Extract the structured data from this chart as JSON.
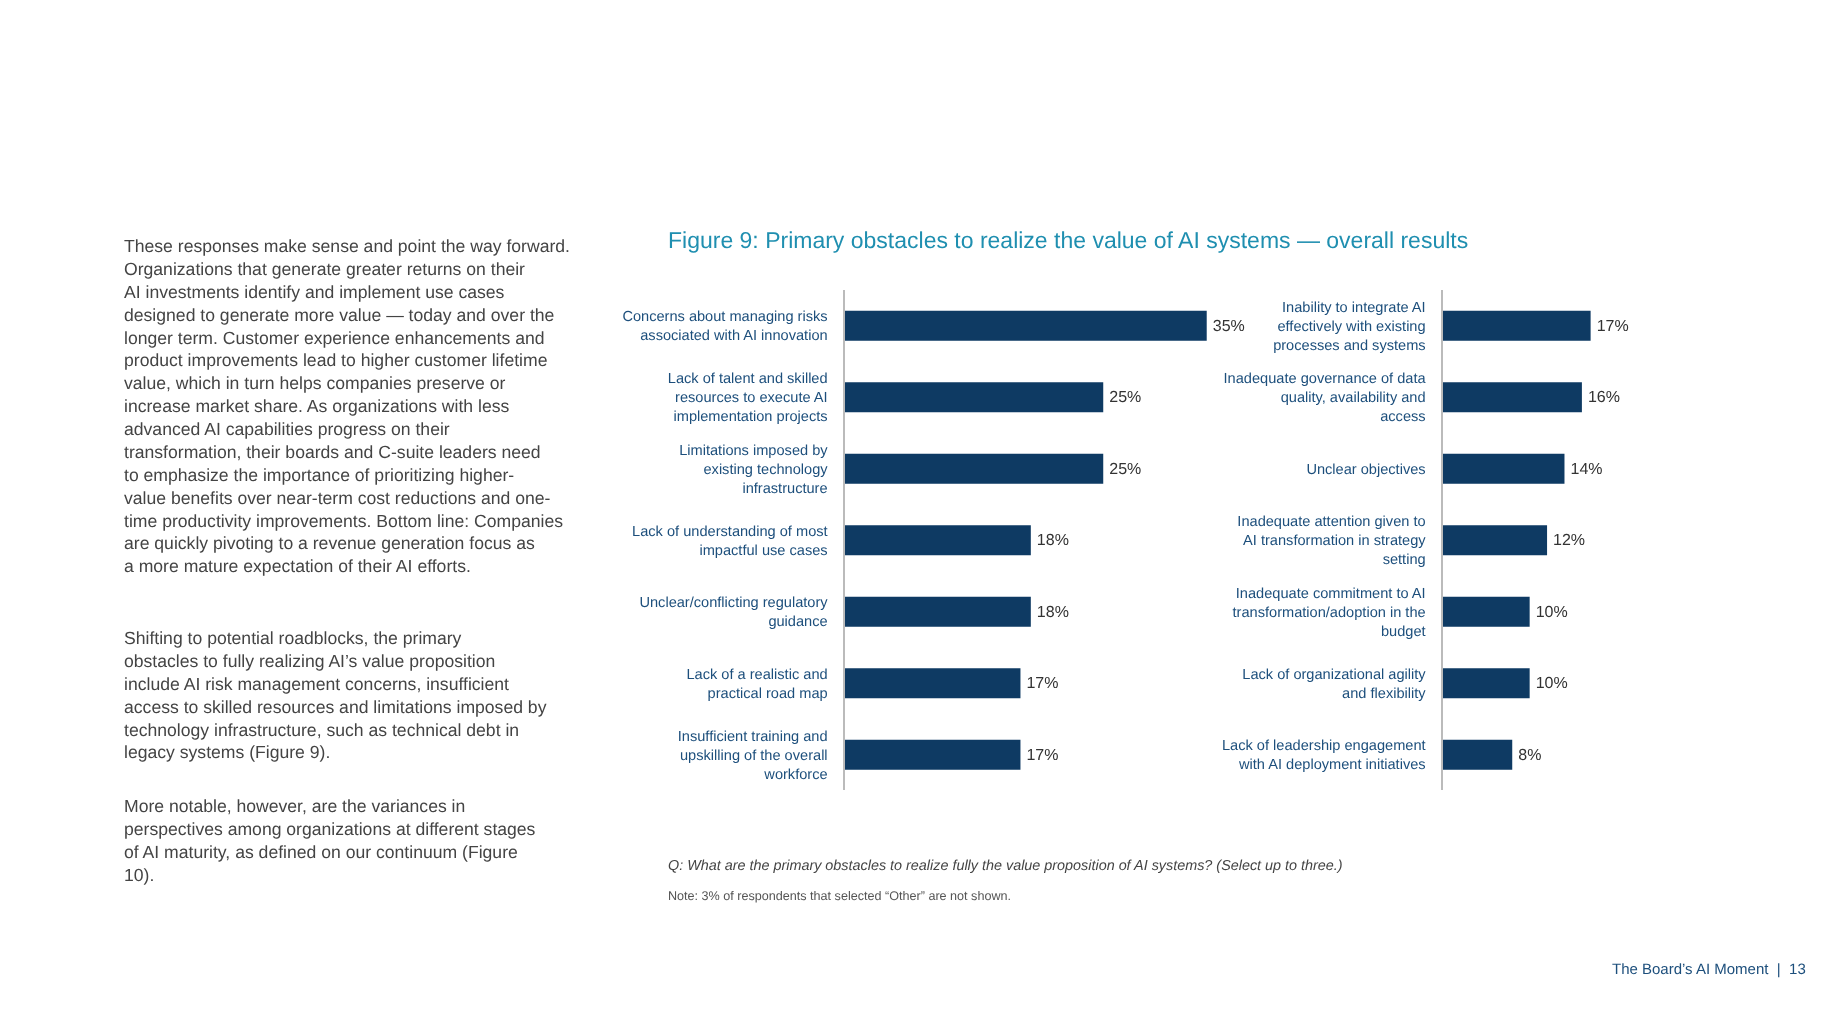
{
  "chart_data": [
    {
      "type": "bar",
      "orientation": "horizontal",
      "title": "Figure 9: Primary obstacles to realize the value of AI systems — overall results",
      "categories": [
        "Concerns about managing risks associated with AI innovation",
        "Lack of talent and skilled resources to execute AI implementation projects",
        "Limitations imposed by existing technology infrastructure",
        "Lack of understanding of most impactful use cases",
        "Unclear/conflicting regulatory guidance",
        "Lack of a realistic and practical road map",
        "Insufficient training and upskilling of the overall workforce"
      ],
      "series": [
        {
          "color": "#0e3a63",
          "values": [
            35,
            25,
            25,
            18,
            18,
            17,
            17
          ],
          "value_labels": [
            "35%",
            "25%",
            "25%",
            "18%",
            "18%",
            "17%",
            "17%"
          ]
        }
      ],
      "tick_labels": "y",
      "annotations": [
        "These responses make sense and point the way forward. Organizations that generate greater returns on their AI investments identify and implement use cases designed to generate more value — today and over the longer term. Customer experience enhancements and product improvements lead to higher customer lifetime value, which in turn helps companies preserve or increase market share. As organizations with less advanced AI capabilities progress on their transformation, their boards and C-suite leaders need to emphasize the importance of prioritizing higher-value benefits over near-term cost reductions and one-time productivity improvements. Bottom line: Companies are quickly pivoting to a revenue generation focus as a more mature expectation of their AI efforts.",
        "Shifting to potential roadblocks, the primary obstacles to fully realizing AI’s value proposition include AI risk management concerns, insufficient access to skilled resources and limitations imposed by technology infrastructure, such as technical debt in legacy systems (Figure 9).",
        "More notable, however, are the variances in perspectives among organizations at different stages of AI maturity, as defined on our continuum (Figure 10).",
        "Q: What are the primary obstacles to realize fully the value proposition of AI systems? (Select up to three.)",
        "Note: 3% of respondents that selected “Other” are not shown.",
        "The Board’s AI Moment  |  13"
      ]
    },
    {
      "type": "bar",
      "orientation": "horizontal",
      "categories": [
        "Inability to integrate AI effectively with existing processes and systems",
        "Inadequate governance of data quality, availability and access",
        "Unclear objectives",
        "Inadequate attention given to AI transformation in strategy setting",
        "Inadequate commitment to AI transformation/adoption in the budget",
        "Lack of organizational agility and flexibility",
        "Lack of leadership engagement with AI deployment initiatives"
      ],
      "series": [
        {
          "color": "#0e3a63",
          "values": [
            17,
            16,
            14,
            12,
            10,
            10,
            8
          ],
          "value_labels": [
            "17%",
            "16%",
            "14%",
            "12%",
            "10%",
            "10%",
            "8%"
          ]
        }
      ],
      "tick_labels": "y"
    }
  ]
}
